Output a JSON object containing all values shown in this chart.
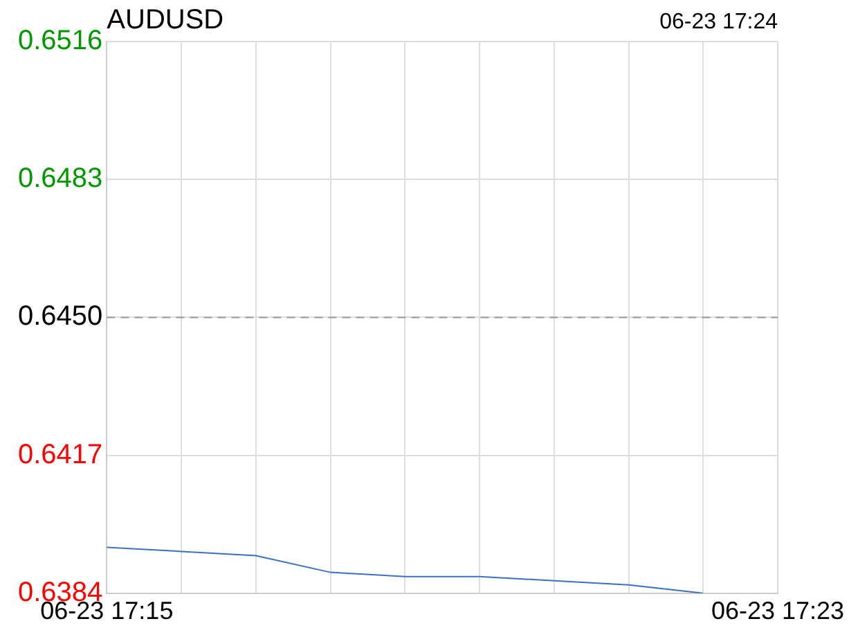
{
  "chart_data": {
    "type": "line",
    "title": "AUDUSD",
    "subtitle": "06-23 17:24",
    "categories": [
      "06-23 17:15",
      null,
      null,
      null,
      null,
      null,
      null,
      null,
      null,
      "06-23 17:23"
    ],
    "series": [
      {
        "color": "#3a6fc9",
        "values": [
          0.6395,
          0.6394,
          0.6393,
          0.6389,
          0.6388,
          0.6388,
          0.6387,
          0.6386,
          0.6384,
          null
        ]
      }
    ],
    "ylim": [
      0.6384,
      0.6516
    ],
    "yticks": [
      0.6384,
      0.6417,
      {
        "value": 0.645,
        "label": "0.6450"
      },
      0.6483,
      0.6516
    ],
    "ref_lines": [
      {
        "axis": "y",
        "value": 0.645,
        "color": "#999999",
        "line_style": "dashed"
      }
    ],
    "grid": true,
    "legend": false,
    "marker": "none",
    "line_style": "solid"
  }
}
